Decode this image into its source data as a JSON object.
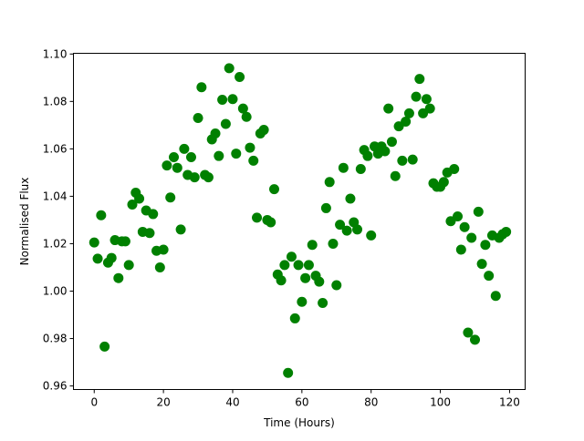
{
  "chart_data": {
    "type": "scatter",
    "xlabel": "Time (Hours)",
    "ylabel": "Normalised Flux",
    "xlim": [
      -6,
      124.5
    ],
    "ylim": [
      0.9585,
      1.1003
    ],
    "xticks": [
      0,
      20,
      40,
      60,
      80,
      100,
      120
    ],
    "yticks": [
      0.96,
      0.98,
      1.0,
      1.02,
      1.04,
      1.06,
      1.08,
      1.1
    ],
    "ytick_labels": [
      "0.96",
      "0.98",
      "1.00",
      "1.02",
      "1.04",
      "1.06",
      "1.08",
      "1.10"
    ],
    "grid": false,
    "color": "#008000",
    "x": [
      0,
      1,
      2,
      3,
      4,
      5,
      6,
      7,
      8,
      9,
      10,
      11,
      12,
      13,
      14,
      15,
      16,
      17,
      18,
      19,
      20,
      21,
      22,
      23,
      24,
      25,
      26,
      27,
      28,
      29,
      30,
      31,
      32,
      33,
      34,
      35,
      36,
      37,
      38,
      39,
      40,
      41,
      42,
      43,
      44,
      45,
      46,
      47,
      48,
      49,
      50,
      51,
      52,
      53,
      54,
      55,
      56,
      57,
      58,
      59,
      60,
      61,
      62,
      63,
      64,
      65,
      66,
      67,
      68,
      69,
      70,
      71,
      72,
      73,
      74,
      75,
      76,
      77,
      78,
      79,
      80,
      81,
      82,
      83,
      84,
      85,
      86,
      87,
      88,
      89,
      90,
      91,
      92,
      93,
      94,
      95,
      96,
      97,
      98,
      99,
      100,
      101,
      102,
      103,
      104,
      105,
      106,
      107,
      108,
      109,
      110,
      111,
      112,
      113,
      114,
      115,
      116,
      117,
      118,
      119
    ],
    "y": [
      1.0205,
      1.0137,
      1.032,
      0.9766,
      1.012,
      1.014,
      1.0215,
      1.0055,
      1.021,
      1.021,
      1.011,
      1.0365,
      1.0415,
      1.039,
      1.025,
      1.034,
      1.0245,
      1.0325,
      1.017,
      1.01,
      1.0175,
      1.053,
      1.0395,
      1.0565,
      1.052,
      1.026,
      1.06,
      1.049,
      1.0565,
      1.048,
      1.073,
      1.086,
      1.049,
      1.048,
      1.064,
      1.0665,
      1.057,
      1.0807,
      1.0705,
      1.094,
      1.081,
      1.058,
      1.0903,
      1.077,
      1.0735,
      1.0605,
      1.055,
      1.031,
      1.0665,
      1.068,
      1.03,
      1.029,
      1.043,
      1.007,
      1.0045,
      1.011,
      0.9655,
      1.0145,
      0.9885,
      1.011,
      0.9955,
      1.0055,
      1.011,
      1.0195,
      1.0065,
      1.004,
      0.995,
      1.035,
      1.046,
      1.02,
      1.0025,
      1.028,
      1.052,
      1.0255,
      1.039,
      1.029,
      1.026,
      1.0515,
      1.0595,
      1.057,
      1.0235,
      1.061,
      1.058,
      1.061,
      1.059,
      1.077,
      1.063,
      1.0485,
      1.0695,
      1.055,
      1.0715,
      1.075,
      1.0555,
      1.082,
      1.0895,
      1.075,
      1.081,
      1.077,
      1.0455,
      1.044,
      1.044,
      1.046,
      1.05,
      1.0295,
      1.0515,
      1.0315,
      1.0175,
      1.027,
      0.9825,
      1.0225,
      0.9795,
      1.0335,
      1.0115,
      1.0195,
      1.0065,
      1.0235,
      0.998,
      1.0225,
      1.024,
      1.025
    ]
  }
}
